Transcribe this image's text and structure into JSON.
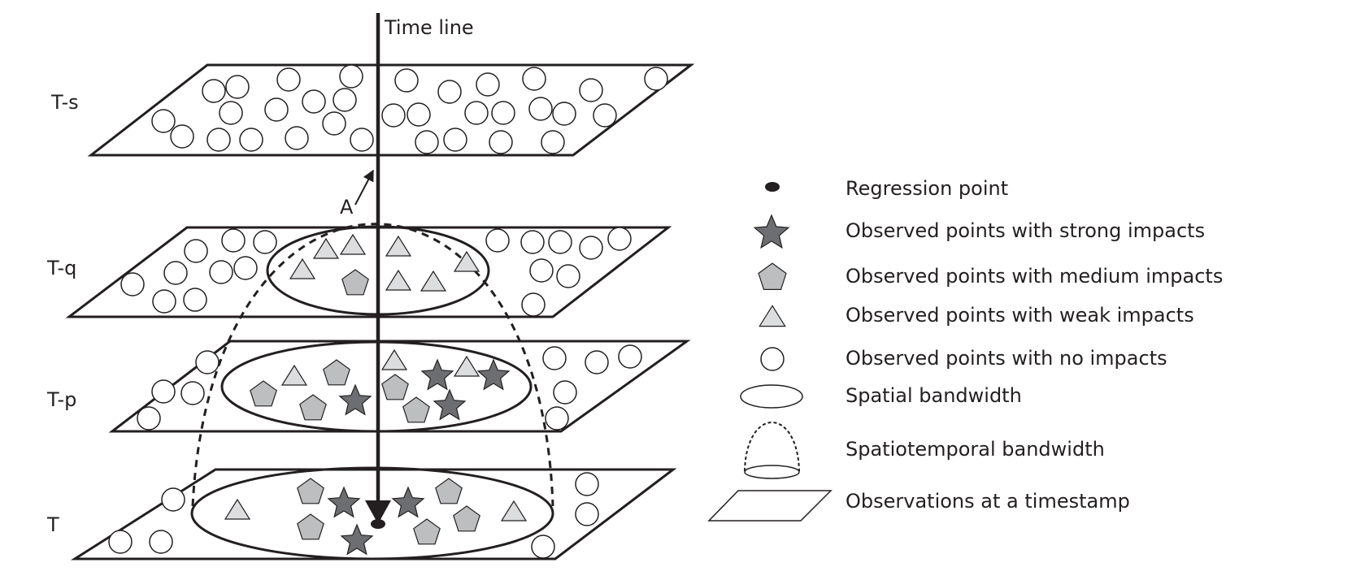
{
  "timeline_label": "Time  line",
  "point_label": "A",
  "layers": [
    {
      "label": "T-s"
    },
    {
      "label": "T-q"
    },
    {
      "label": "T-p"
    },
    {
      "label": "T"
    }
  ],
  "legend": [
    {
      "label": "Regression point",
      "icon": "filled-ellipse-icon"
    },
    {
      "label": "Observed points with strong impacts",
      "icon": "star-icon"
    },
    {
      "label": "Observed points with medium impacts",
      "icon": "pentagon-icon"
    },
    {
      "label": "Observed points with weak impacts",
      "icon": "triangle-icon"
    },
    {
      "label": "Observed points with no impacts",
      "icon": "circle-icon"
    },
    {
      "label": "Spatial bandwidth",
      "icon": "ellipse-icon"
    },
    {
      "label": "Spatiotemporal bandwidth",
      "icon": "dome-icon"
    },
    {
      "label": "Observations at a timestamp",
      "icon": "parallelogram-icon"
    }
  ],
  "colors": {
    "stroke": "#231f20",
    "strong_fill": "#6d6e71",
    "medium_fill": "#bcbec0",
    "weak_fill": "#dcdddf",
    "none_fill": "#ffffff"
  }
}
